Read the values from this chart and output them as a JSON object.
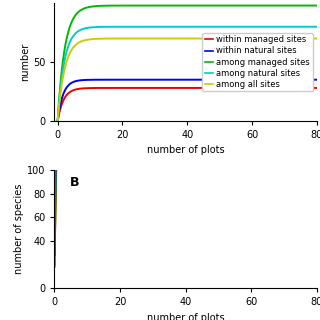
{
  "panel_A": {
    "xlabel": "number of plots",
    "ylabel": "number",
    "xlim": [
      -1,
      80
    ],
    "ylim": [
      0,
      100
    ],
    "xticks": [
      0,
      20,
      40,
      60,
      80
    ],
    "yticks": [
      0,
      50
    ],
    "curves": [
      {
        "color": "#EE0000",
        "a": 28,
        "b": 0.55
      },
      {
        "color": "#0000EE",
        "a": 35,
        "b": 0.6
      },
      {
        "color": "#00BB00",
        "a": 98,
        "b": 0.45
      },
      {
        "color": "#00CCCC",
        "a": 80,
        "b": 0.48
      },
      {
        "color": "#CCCC00",
        "a": 70,
        "b": 0.46
      }
    ],
    "legend": [
      {
        "label": "within managed sites",
        "color": "#EE0000"
      },
      {
        "label": "within natural sites",
        "color": "#0000EE"
      },
      {
        "label": "among managed sites",
        "color": "#00BB00"
      },
      {
        "label": "among natural sites",
        "color": "#00CCCC"
      },
      {
        "label": "among all sites",
        "color": "#CCCC00"
      }
    ]
  },
  "panel_B": {
    "label": "B",
    "xlabel": "number of plots",
    "ylabel": "number of species",
    "xlim": [
      0,
      80
    ],
    "ylim": [
      0,
      100
    ],
    "xticks": [
      0,
      20,
      40,
      60,
      80
    ],
    "yticks": [
      0,
      40,
      60,
      80,
      100
    ],
    "curves": [
      {
        "fill_color": "#FF8888",
        "line_color": "#CC0000",
        "c": 18,
        "p": 0.42,
        "spread": 5
      },
      {
        "fill_color": "#88EE88",
        "line_color": "#008800",
        "c": 20,
        "p": 0.4,
        "spread": 4
      },
      {
        "fill_color": "#EEEE44",
        "line_color": "#AAAA00",
        "c": 22,
        "p": 0.44,
        "spread": 7
      },
      {
        "fill_color": "#6666FF",
        "line_color": "#0000CC",
        "c": 28,
        "p": 0.46,
        "spread": 8
      },
      {
        "fill_color": "#44EEEE",
        "line_color": "#008888",
        "c": 32,
        "p": 0.47,
        "spread": 9
      }
    ]
  },
  "bg_color": "#FFFFFF",
  "fontsize": 7
}
